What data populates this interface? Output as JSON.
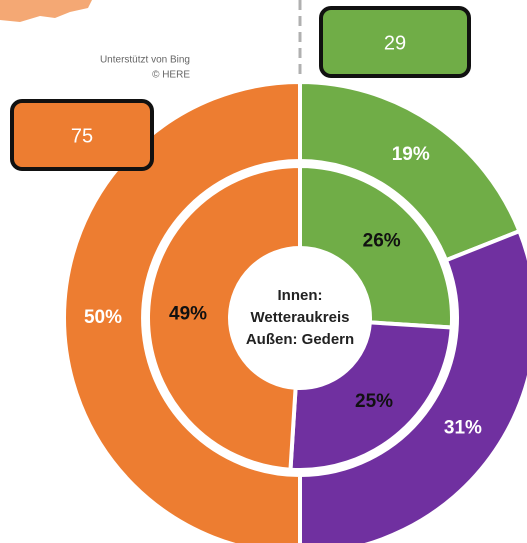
{
  "chart_data": {
    "type": "donut",
    "center_text": [
      "Innen:",
      "Wetteraukreis",
      "Außen: Gedern"
    ],
    "colors": [
      "#70ad47",
      "#7030a0",
      "#ed7d31"
    ],
    "rings": [
      {
        "values": [
          26,
          25,
          49
        ],
        "value_labels": [
          "26%",
          "25%",
          "49%"
        ]
      },
      {
        "values": [
          19,
          31,
          50
        ],
        "value_labels": [
          "19%",
          "31%",
          "50%"
        ]
      }
    ],
    "annotations": [
      "75",
      "29"
    ],
    "attribution": [
      "Unterstützt von Bing",
      "© HERE"
    ]
  }
}
